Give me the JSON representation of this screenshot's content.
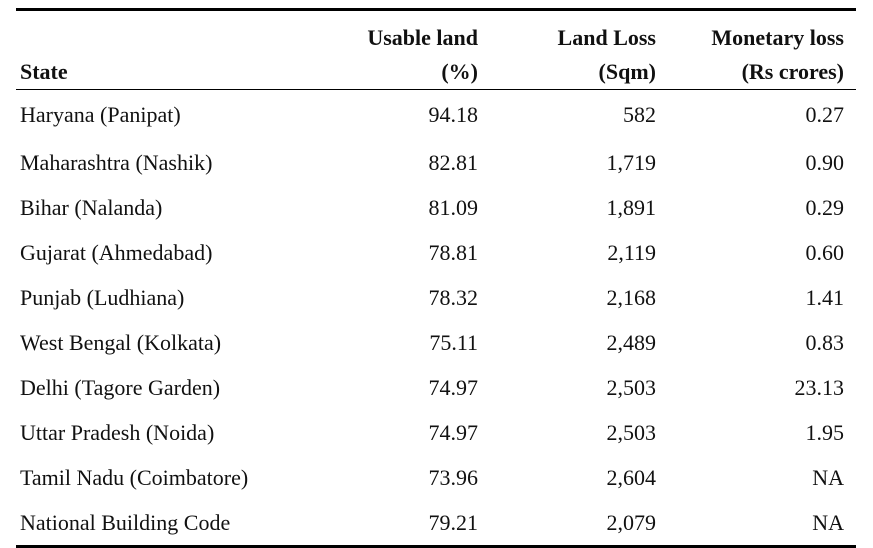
{
  "table": {
    "headers": {
      "state": "State",
      "usable_land": [
        "Usable land",
        "(%)"
      ],
      "land_loss": [
        "Land Loss",
        "(Sqm)"
      ],
      "monetary_loss": [
        "Monetary loss",
        "(Rs crores)"
      ]
    },
    "rows": [
      {
        "state": "Haryana (Panipat)",
        "usable": "94.18",
        "loss": "582",
        "money": "0.27"
      },
      {
        "state": "Maharashtra (Nashik)",
        "usable": "82.81",
        "loss": "1,719",
        "money": "0.90"
      },
      {
        "state": "Bihar (Nalanda)",
        "usable": "81.09",
        "loss": "1,891",
        "money": "0.29"
      },
      {
        "state": "Gujarat (Ahmedabad)",
        "usable": "78.81",
        "loss": "2,119",
        "money": "0.60"
      },
      {
        "state": "Punjab (Ludhiana)",
        "usable": "78.32",
        "loss": "2,168",
        "money": "1.41"
      },
      {
        "state": "West Bengal (Kolkata)",
        "usable": "75.11",
        "loss": "2,489",
        "money": "0.83"
      },
      {
        "state": "Delhi (Tagore Garden)",
        "usable": "74.97",
        "loss": "2,503",
        "money": "23.13"
      },
      {
        "state": "Uttar Pradesh (Noida)",
        "usable": "74.97",
        "loss": "2,503",
        "money": "1.95"
      },
      {
        "state": "Tamil Nadu (Coimbatore)",
        "usable": "73.96",
        "loss": "2,604",
        "money": "NA"
      },
      {
        "state": "National Building Code",
        "usable": "79.21",
        "loss": "2,079",
        "money": "NA"
      }
    ]
  }
}
